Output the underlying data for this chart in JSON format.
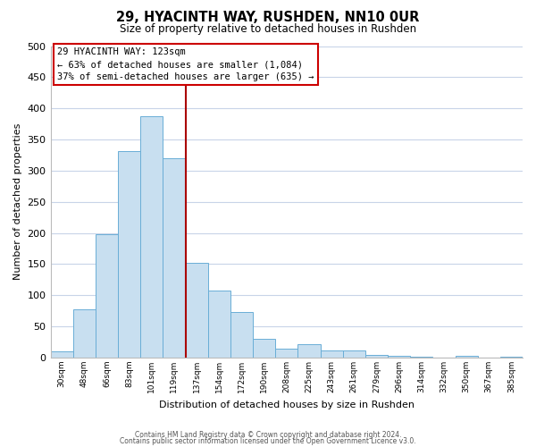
{
  "title": "29, HYACINTH WAY, RUSHDEN, NN10 0UR",
  "subtitle": "Size of property relative to detached houses in Rushden",
  "xlabel": "Distribution of detached houses by size in Rushden",
  "ylabel": "Number of detached properties",
  "bar_labels": [
    "30sqm",
    "48sqm",
    "66sqm",
    "83sqm",
    "101sqm",
    "119sqm",
    "137sqm",
    "154sqm",
    "172sqm",
    "190sqm",
    "208sqm",
    "225sqm",
    "243sqm",
    "261sqm",
    "279sqm",
    "296sqm",
    "314sqm",
    "332sqm",
    "350sqm",
    "367sqm",
    "385sqm"
  ],
  "bar_values": [
    10,
    78,
    198,
    332,
    388,
    320,
    152,
    108,
    73,
    30,
    15,
    22,
    12,
    12,
    5,
    3,
    1,
    0,
    3,
    0,
    2
  ],
  "bar_color": "#c8dff0",
  "bar_edge_color": "#6aaed6",
  "vline_x": 5,
  "vline_color": "#aa0000",
  "annotation_title": "29 HYACINTH WAY: 123sqm",
  "annotation_line1": "← 63% of detached houses are smaller (1,084)",
  "annotation_line2": "37% of semi-detached houses are larger (635) →",
  "annotation_box_color": "#ffffff",
  "annotation_box_edge": "#cc0000",
  "ylim": [
    0,
    500
  ],
  "yticks": [
    0,
    50,
    100,
    150,
    200,
    250,
    300,
    350,
    400,
    450,
    500
  ],
  "footer1": "Contains HM Land Registry data © Crown copyright and database right 2024.",
  "footer2": "Contains public sector information licensed under the Open Government Licence v3.0.",
  "background_color": "#ffffff",
  "grid_color": "#c8d4e8"
}
